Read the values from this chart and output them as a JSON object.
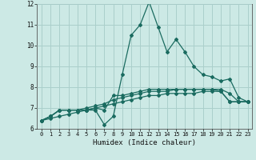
{
  "title": "",
  "xlabel": "Humidex (Indice chaleur)",
  "background_color": "#cce9e5",
  "grid_color": "#aacfcb",
  "line_color": "#1a6b60",
  "x_values": [
    0,
    1,
    2,
    3,
    4,
    5,
    6,
    7,
    8,
    9,
    10,
    11,
    12,
    13,
    14,
    15,
    16,
    17,
    18,
    19,
    20,
    21,
    22,
    23
  ],
  "series1": [
    6.4,
    6.6,
    6.9,
    6.9,
    6.9,
    6.9,
    6.9,
    6.2,
    6.6,
    8.6,
    10.5,
    11.0,
    12.1,
    10.9,
    9.7,
    10.3,
    9.7,
    9.0,
    8.6,
    8.5,
    8.3,
    8.4,
    7.5,
    7.3
  ],
  "series2": [
    6.4,
    6.6,
    6.9,
    6.9,
    6.9,
    6.9,
    7.0,
    6.9,
    7.6,
    7.6,
    7.7,
    7.8,
    7.9,
    7.9,
    7.9,
    7.9,
    7.9,
    7.9,
    7.9,
    7.9,
    7.8,
    7.3,
    7.3,
    7.3
  ],
  "series3": [
    6.4,
    6.6,
    6.9,
    6.9,
    6.9,
    7.0,
    7.1,
    7.2,
    7.4,
    7.5,
    7.6,
    7.7,
    7.8,
    7.8,
    7.8,
    7.9,
    7.9,
    7.9,
    7.9,
    7.9,
    7.9,
    7.7,
    7.3,
    7.3
  ],
  "series4": [
    6.4,
    6.5,
    6.6,
    6.7,
    6.8,
    6.9,
    7.0,
    7.1,
    7.2,
    7.3,
    7.4,
    7.5,
    7.6,
    7.6,
    7.7,
    7.7,
    7.7,
    7.7,
    7.8,
    7.8,
    7.8,
    7.3,
    7.3,
    7.3
  ],
  "ylim": [
    6,
    12
  ],
  "xlim_min": -0.5,
  "xlim_max": 23.5,
  "yticks": [
    6,
    7,
    8,
    9,
    10,
    11,
    12
  ],
  "xticks": [
    0,
    1,
    2,
    3,
    4,
    5,
    6,
    7,
    8,
    9,
    10,
    11,
    12,
    13,
    14,
    15,
    16,
    17,
    18,
    19,
    20,
    21,
    22,
    23
  ]
}
